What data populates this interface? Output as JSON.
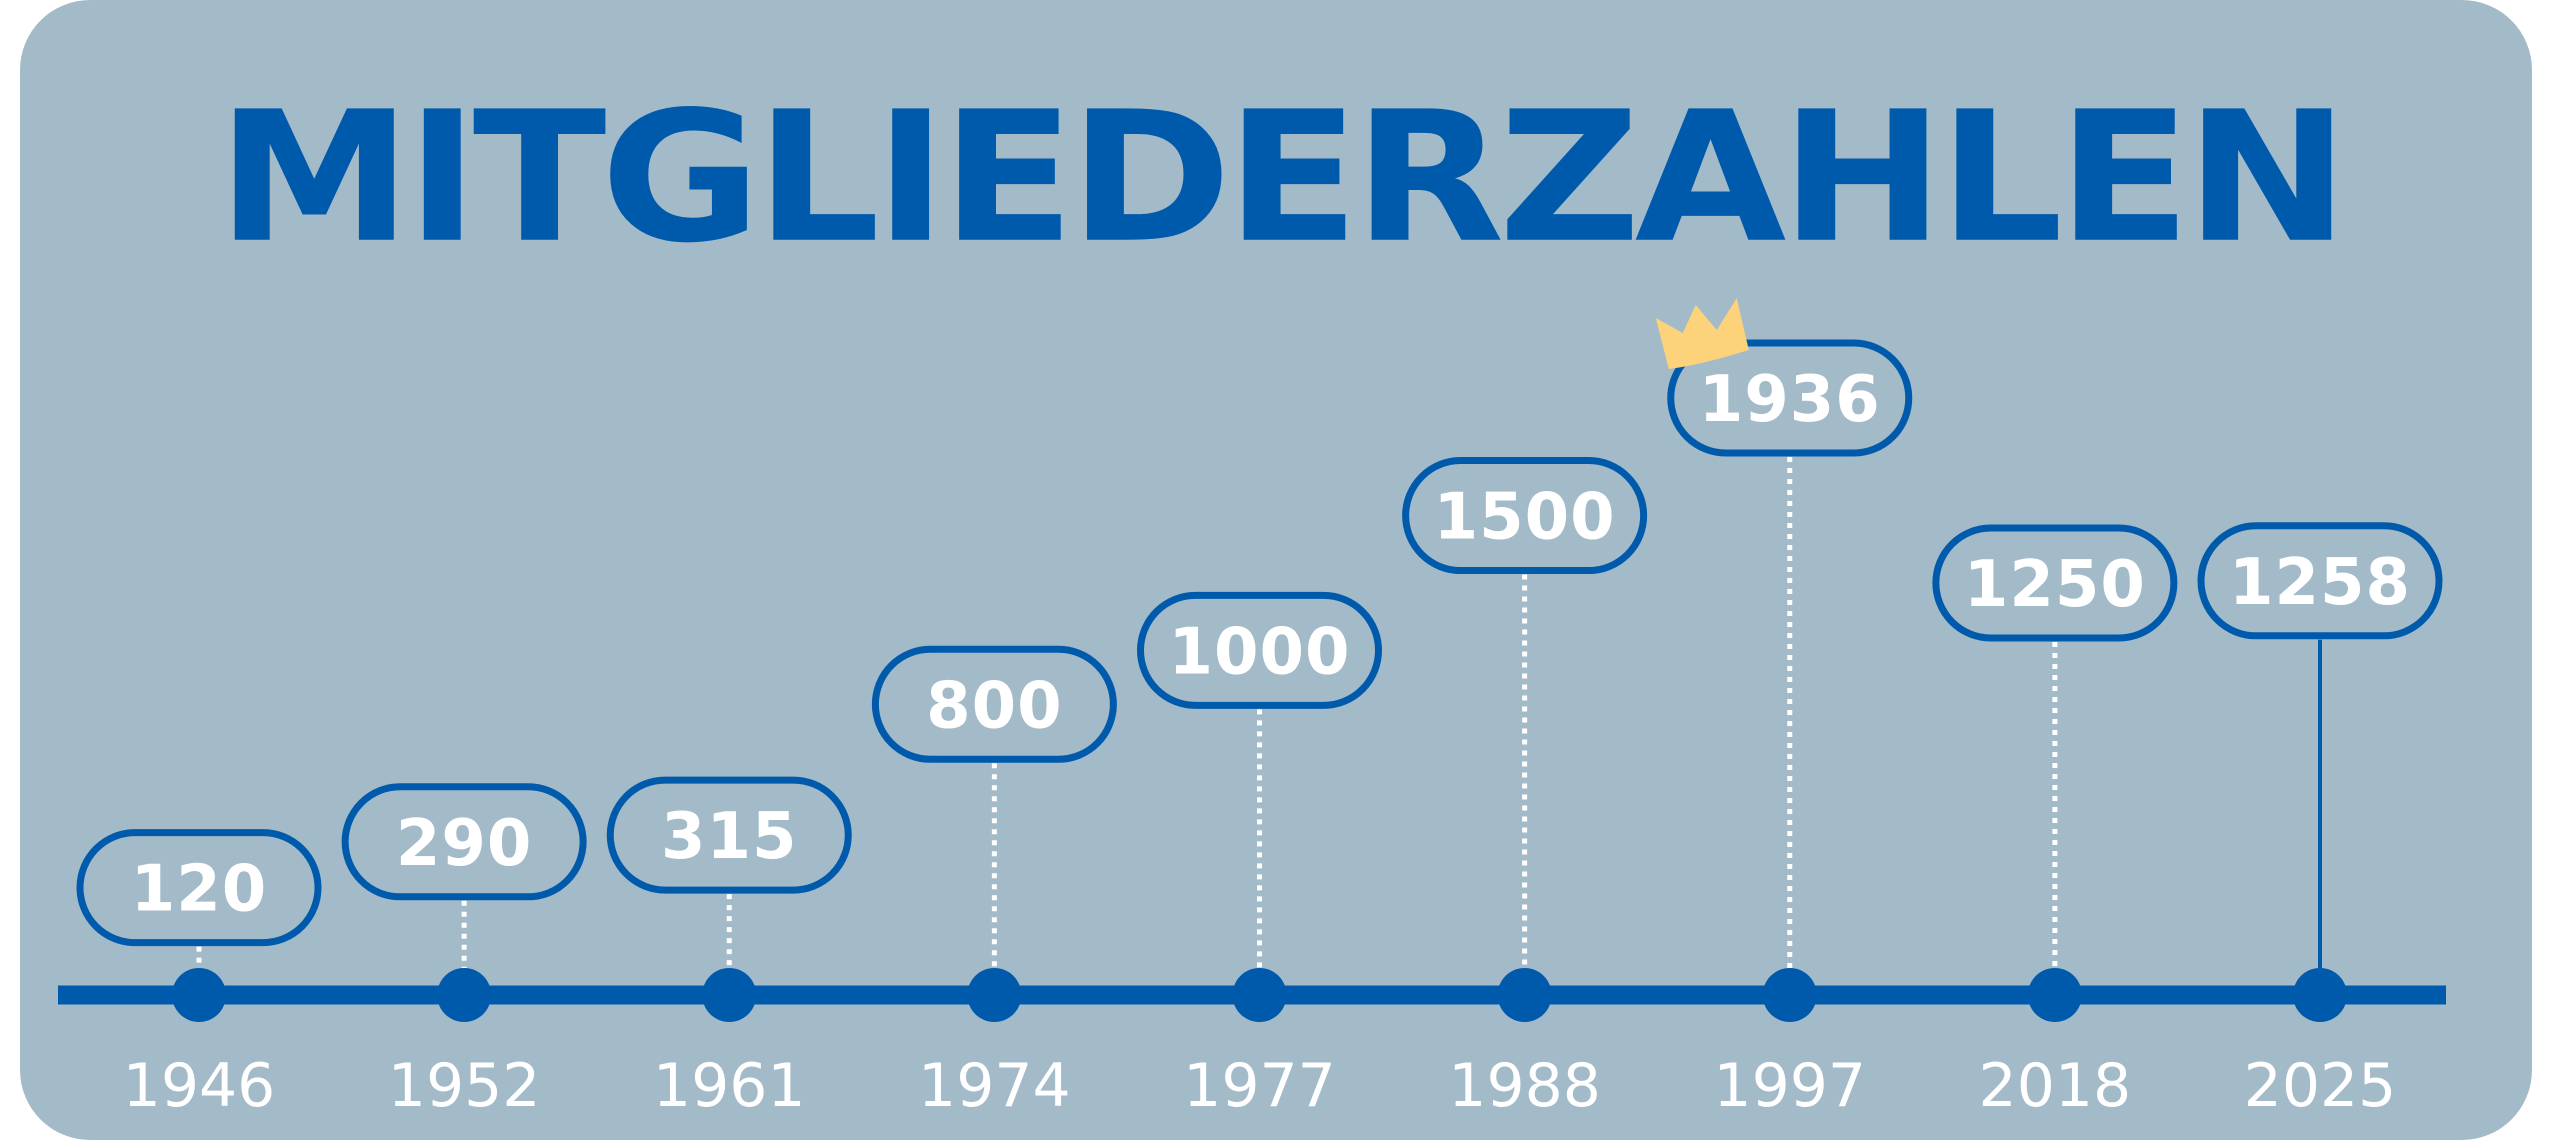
{
  "title": "MITGLIEDERZAHLEN",
  "colors": {
    "background": "#a3bac9",
    "accent": "#005aab",
    "label_text": "#ffffff",
    "crown": "#fcd27a"
  },
  "highlight": {
    "category": "1997",
    "icon": "crown-icon"
  },
  "chart_data": {
    "type": "timeline",
    "title": "MITGLIEDERZAHLEN",
    "categories": [
      "1946",
      "1952",
      "1961",
      "1974",
      "1977",
      "1988",
      "1997",
      "2018",
      "2025"
    ],
    "values": [
      120,
      290,
      315,
      800,
      1000,
      1500,
      1936,
      1250,
      1258
    ],
    "xlabel": "",
    "ylabel": "",
    "ylim": [
      0,
      1936
    ],
    "grid": false,
    "legend": "none"
  }
}
